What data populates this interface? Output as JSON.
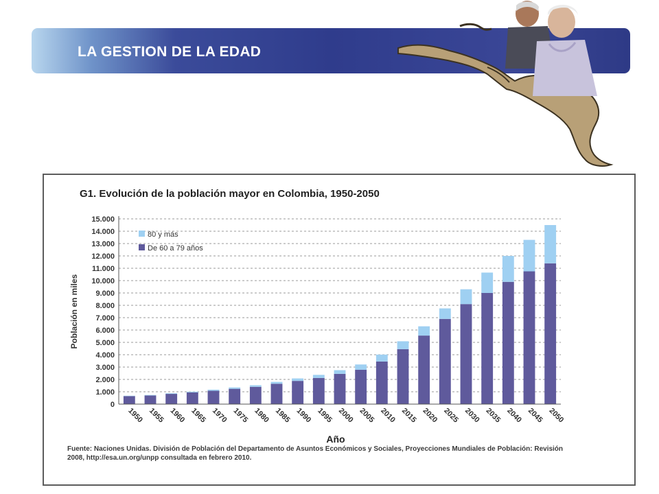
{
  "banner": {
    "title": "LA GESTION DE LA EDAD"
  },
  "colors": {
    "old_80": "#9fd0f2",
    "age_60_79": "#5f5a9c",
    "banner_dark": "#2f3c8c"
  },
  "chart_data": {
    "type": "bar",
    "stacked": true,
    "title": "G1. Evolución de la población mayor en Colombia, 1950-2050",
    "xlabel": "Año",
    "ylabel": "Población en miles",
    "ylim": [
      0,
      15000
    ],
    "yticks": [
      "0",
      "1.000",
      "2.000",
      "3.000",
      "4.000",
      "5.000",
      "6.000",
      "7.000",
      "8.000",
      "9.000",
      "10.000",
      "11.000",
      "12.000",
      "13.000",
      "14.000",
      "15.000"
    ],
    "categories": [
      "1950",
      "1955",
      "1960",
      "1965",
      "1970",
      "1975",
      "1980",
      "1985",
      "1990",
      "1995",
      "2000",
      "2005",
      "2010",
      "2015",
      "2020",
      "2025",
      "2030",
      "2035",
      "2040",
      "2045",
      "2050"
    ],
    "series": [
      {
        "name": "De 60 a 79 años",
        "color": "#5f5a9c",
        "values": [
          650,
          700,
          830,
          950,
          1080,
          1240,
          1400,
          1650,
          1880,
          2120,
          2450,
          2780,
          3450,
          4450,
          5550,
          6900,
          8100,
          9000,
          9900,
          10750,
          11400
        ]
      },
      {
        "name": "80 y más",
        "color": "#9fd0f2",
        "values": [
          30,
          40,
          50,
          60,
          90,
          110,
          130,
          150,
          200,
          250,
          300,
          430,
          560,
          640,
          750,
          850,
          1200,
          1650,
          2100,
          2550,
          3100
        ]
      }
    ],
    "legend_position": "top-left",
    "grid": true,
    "source": "Fuente: Naciones Unidas. División de Población del Departamento de Asuntos Económicos y Sociales, Proyecciones Mundiales de Población: Revisión 2008, http://esa.un.org/unpp consultada en febrero 2010."
  }
}
